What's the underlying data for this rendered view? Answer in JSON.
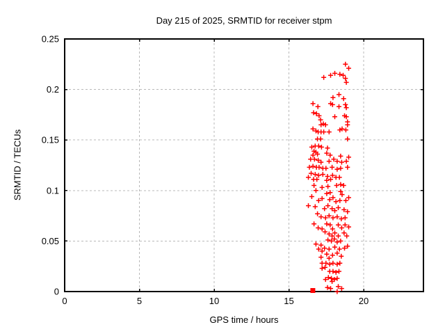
{
  "window": {
    "background": "#ffffff",
    "foreground": "#000000"
  },
  "chart_data": {
    "type": "scatter",
    "title": "Day 215 of 2025, SRMTID for receiver stpm",
    "xlabel": "GPS time / hours",
    "ylabel": "SRMTID / TECUs",
    "xlim": [
      0,
      24
    ],
    "ylim": [
      0,
      0.25
    ],
    "xticks": {
      "values": [
        0,
        5,
        10,
        15,
        20
      ],
      "labels": [
        "0",
        "5",
        "10",
        "15",
        "20"
      ]
    },
    "yticks": {
      "values": [
        0,
        0.05,
        0.1,
        0.15,
        0.2,
        0.25
      ],
      "labels": [
        "0",
        "0.05",
        "0.1",
        "0.15",
        "0.2",
        "0.25"
      ]
    },
    "grid": {
      "show": true,
      "color": "#b8b8b8",
      "style": "dashed"
    },
    "axis_color": "#000000",
    "legend": {
      "show": false
    },
    "series": [
      {
        "name": "SRMTID",
        "marker": "plus",
        "color": "#ff0000",
        "marker_size": 7,
        "points": [
          [
            18.78,
            0.225
          ],
          [
            19.0,
            0.221
          ],
          [
            18.07,
            0.216
          ],
          [
            18.41,
            0.215
          ],
          [
            18.63,
            0.214
          ],
          [
            17.79,
            0.214
          ],
          [
            17.33,
            0.212
          ],
          [
            18.78,
            0.211
          ],
          [
            18.84,
            0.207
          ],
          [
            18.35,
            0.195
          ],
          [
            17.95,
            0.192
          ],
          [
            18.66,
            0.191
          ],
          [
            16.61,
            0.186
          ],
          [
            16.94,
            0.183
          ],
          [
            17.79,
            0.186
          ],
          [
            17.92,
            0.185
          ],
          [
            18.35,
            0.183
          ],
          [
            18.78,
            0.185
          ],
          [
            18.84,
            0.182
          ],
          [
            16.65,
            0.177
          ],
          [
            16.84,
            0.176
          ],
          [
            17.02,
            0.174
          ],
          [
            18.07,
            0.173
          ],
          [
            18.72,
            0.174
          ],
          [
            18.84,
            0.173
          ],
          [
            17.12,
            0.17
          ],
          [
            17.3,
            0.166
          ],
          [
            17.15,
            0.165
          ],
          [
            17.45,
            0.165
          ],
          [
            18.92,
            0.168
          ],
          [
            18.92,
            0.165
          ],
          [
            16.61,
            0.161
          ],
          [
            16.81,
            0.159
          ],
          [
            16.96,
            0.158
          ],
          [
            17.15,
            0.158
          ],
          [
            17.33,
            0.158
          ],
          [
            17.69,
            0.158
          ],
          [
            18.41,
            0.16
          ],
          [
            18.56,
            0.161
          ],
          [
            18.81,
            0.16
          ],
          [
            16.91,
            0.151
          ],
          [
            17.12,
            0.151
          ],
          [
            18.92,
            0.151
          ],
          [
            16.53,
            0.143
          ],
          [
            16.76,
            0.144
          ],
          [
            16.99,
            0.144
          ],
          [
            17.18,
            0.143
          ],
          [
            17.58,
            0.142
          ],
          [
            16.68,
            0.139
          ],
          [
            16.81,
            0.138
          ],
          [
            16.91,
            0.136
          ],
          [
            16.61,
            0.135
          ],
          [
            17.53,
            0.137
          ],
          [
            17.76,
            0.135
          ],
          [
            18.46,
            0.134
          ],
          [
            19.0,
            0.133
          ],
          [
            16.45,
            0.131
          ],
          [
            16.71,
            0.131
          ],
          [
            16.96,
            0.13
          ],
          [
            17.15,
            0.128
          ],
          [
            17.69,
            0.129
          ],
          [
            18.0,
            0.131
          ],
          [
            18.23,
            0.129
          ],
          [
            18.53,
            0.128
          ],
          [
            18.84,
            0.129
          ],
          [
            16.37,
            0.123
          ],
          [
            16.61,
            0.124
          ],
          [
            16.84,
            0.123
          ],
          [
            17.02,
            0.123
          ],
          [
            17.27,
            0.122
          ],
          [
            17.48,
            0.122
          ],
          [
            17.89,
            0.123
          ],
          [
            18.23,
            0.121
          ],
          [
            18.46,
            0.122
          ],
          [
            18.92,
            0.123
          ],
          [
            16.49,
            0.117
          ],
          [
            16.76,
            0.116
          ],
          [
            16.99,
            0.115
          ],
          [
            17.27,
            0.116
          ],
          [
            17.58,
            0.114
          ],
          [
            17.92,
            0.115
          ],
          [
            18.15,
            0.113
          ],
          [
            18.38,
            0.113
          ],
          [
            16.3,
            0.113
          ],
          [
            16.65,
            0.111
          ],
          [
            16.87,
            0.111
          ],
          [
            17.53,
            0.11
          ],
          [
            17.79,
            0.111
          ],
          [
            16.68,
            0.105
          ],
          [
            17.22,
            0.103
          ],
          [
            17.61,
            0.104
          ],
          [
            18.19,
            0.105
          ],
          [
            18.46,
            0.106
          ],
          [
            18.66,
            0.105
          ],
          [
            16.81,
            0.1
          ],
          [
            17.53,
            0.097
          ],
          [
            17.76,
            0.098
          ],
          [
            18.46,
            0.099
          ],
          [
            18.56,
            0.096
          ],
          [
            16.53,
            0.094
          ],
          [
            16.99,
            0.09
          ],
          [
            17.22,
            0.092
          ],
          [
            17.73,
            0.091
          ],
          [
            17.95,
            0.093
          ],
          [
            18.15,
            0.089
          ],
          [
            18.41,
            0.09
          ],
          [
            18.81,
            0.09
          ],
          [
            19.0,
            0.093
          ],
          [
            16.3,
            0.085
          ],
          [
            16.76,
            0.084
          ],
          [
            17.38,
            0.082
          ],
          [
            17.61,
            0.085
          ],
          [
            17.89,
            0.082
          ],
          [
            18.07,
            0.08
          ],
          [
            18.3,
            0.083
          ],
          [
            18.69,
            0.081
          ],
          [
            18.92,
            0.079
          ],
          [
            16.91,
            0.077
          ],
          [
            17.15,
            0.074
          ],
          [
            17.45,
            0.073
          ],
          [
            17.69,
            0.075
          ],
          [
            17.95,
            0.073
          ],
          [
            18.23,
            0.074
          ],
          [
            18.5,
            0.072
          ],
          [
            18.76,
            0.073
          ],
          [
            16.68,
            0.067
          ],
          [
            17.53,
            0.067
          ],
          [
            17.76,
            0.066
          ],
          [
            18.3,
            0.066
          ],
          [
            18.76,
            0.066
          ],
          [
            16.96,
            0.063
          ],
          [
            17.22,
            0.062
          ],
          [
            17.92,
            0.062
          ],
          [
            18.53,
            0.063
          ],
          [
            19.0,
            0.064
          ],
          [
            17.42,
            0.059
          ],
          [
            17.69,
            0.057
          ],
          [
            18.07,
            0.058
          ],
          [
            17.89,
            0.055
          ],
          [
            18.3,
            0.055
          ],
          [
            18.69,
            0.058
          ],
          [
            18.87,
            0.055
          ],
          [
            17.61,
            0.051
          ],
          [
            17.84,
            0.05
          ],
          [
            18.04,
            0.052
          ],
          [
            18.23,
            0.049
          ],
          [
            18.46,
            0.05
          ],
          [
            16.81,
            0.047
          ],
          [
            17.15,
            0.046
          ],
          [
            17.38,
            0.043
          ],
          [
            17.69,
            0.042
          ],
          [
            18.07,
            0.044
          ],
          [
            18.38,
            0.042
          ],
          [
            18.72,
            0.043
          ],
          [
            18.92,
            0.045
          ],
          [
            16.99,
            0.042
          ],
          [
            17.22,
            0.04
          ],
          [
            17.53,
            0.037
          ],
          [
            17.92,
            0.036
          ],
          [
            18.23,
            0.038
          ],
          [
            18.5,
            0.035
          ],
          [
            17.15,
            0.034
          ],
          [
            17.69,
            0.033
          ],
          [
            17.22,
            0.028
          ],
          [
            17.48,
            0.028
          ],
          [
            17.73,
            0.027
          ],
          [
            17.95,
            0.028
          ],
          [
            18.23,
            0.027
          ],
          [
            18.41,
            0.028
          ],
          [
            17.22,
            0.023
          ],
          [
            17.42,
            0.024
          ],
          [
            17.73,
            0.02
          ],
          [
            17.95,
            0.02
          ],
          [
            18.15,
            0.019
          ],
          [
            18.35,
            0.02
          ],
          [
            17.45,
            0.012
          ],
          [
            17.64,
            0.014
          ],
          [
            17.84,
            0.013
          ],
          [
            18.04,
            0.012
          ],
          [
            18.23,
            0.013
          ],
          [
            17.89,
            0.01
          ],
          [
            17.58,
            0.004
          ],
          [
            17.79,
            0.003
          ],
          [
            18.3,
            0.005
          ],
          [
            18.53,
            0.003
          ],
          [
            18.23,
            0.0
          ]
        ]
      }
    ],
    "extra_markers": [
      {
        "shape": "filled-square",
        "color": "#ff0000",
        "size": 7,
        "x": 16.6,
        "y": 0.0
      }
    ]
  }
}
